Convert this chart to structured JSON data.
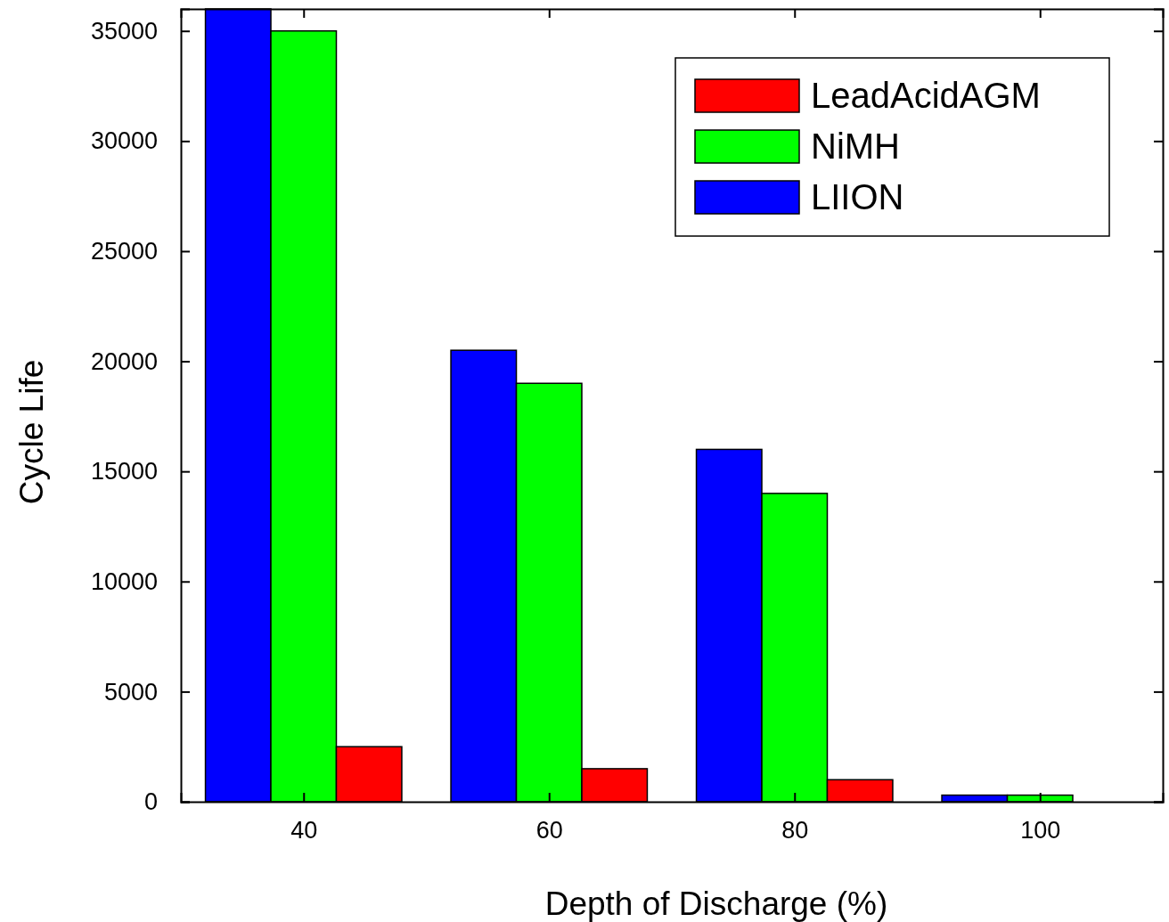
{
  "chart_data": {
    "type": "bar",
    "xlabel": "Depth of Discharge (%)",
    "ylabel": "Cycle Life",
    "x": [
      40,
      60,
      80,
      100
    ],
    "series": [
      {
        "name": "LIION",
        "color": "#0000ff",
        "values": [
          36000,
          20500,
          16000,
          300
        ]
      },
      {
        "name": "NiMH",
        "color": "#00ff00",
        "values": [
          35000,
          19000,
          14000,
          300
        ]
      },
      {
        "name": "LeadAcidAGM",
        "color": "#ff0000",
        "values": [
          2500,
          1500,
          1000,
          null
        ]
      }
    ],
    "xlim": [
      30,
      110
    ],
    "xticks": [
      40,
      60,
      80,
      100
    ],
    "ylim": [
      0,
      36000
    ],
    "yticks": [
      0,
      5000,
      10000,
      15000,
      20000,
      25000,
      30000,
      35000
    ],
    "legend": "top right",
    "grid": false
  }
}
